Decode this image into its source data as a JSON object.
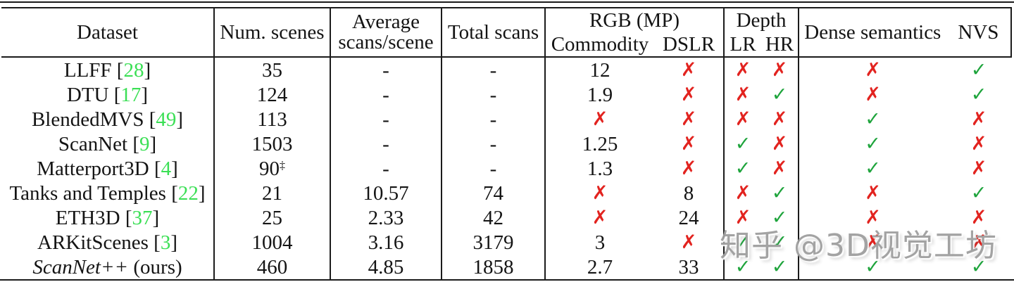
{
  "colors": {
    "check": "#1ea43c",
    "cross": "#e2231f",
    "citation": "#3bdf55"
  },
  "icons": {
    "check": "✓",
    "cross": "✗"
  },
  "watermark": {
    "text": "知乎 @3D视觉工坊"
  },
  "header": {
    "dataset": "Dataset",
    "num_scenes": "Num. scenes",
    "avg_line1": "Average",
    "avg_line2": "scans/scene",
    "total_scans": "Total scans",
    "rgb_group": "RGB (MP)",
    "commodity": "Commodity",
    "dslr": "DSLR",
    "depth_group": "Depth",
    "lr": "LR",
    "hr": "HR",
    "dense_semantics": "Dense semantics",
    "nvs": "NVS"
  },
  "rows": [
    {
      "name": "LLFF",
      "cite": "28",
      "num_scenes": "35",
      "avg": "-",
      "total": "-",
      "commodity": "12",
      "dslr": "cross",
      "lr": "cross",
      "hr": "cross",
      "dense": "cross",
      "nvs": "check"
    },
    {
      "name": "DTU",
      "cite": "17",
      "num_scenes": "124",
      "avg": "-",
      "total": "-",
      "commodity": "1.9",
      "dslr": "cross",
      "lr": "cross",
      "hr": "check",
      "dense": "cross",
      "nvs": "check"
    },
    {
      "name": "BlendedMVS",
      "cite": "49",
      "num_scenes": "113",
      "avg": "-",
      "total": "-",
      "commodity": "cross",
      "dslr": "cross",
      "lr": "cross",
      "hr": "cross",
      "dense": "check",
      "nvs": "cross"
    },
    {
      "name": "ScanNet",
      "cite": "9",
      "num_scenes": "1503",
      "avg": "-",
      "total": "-",
      "commodity": "1.25",
      "dslr": "cross",
      "lr": "check",
      "hr": "cross",
      "dense": "check",
      "nvs": "cross"
    },
    {
      "name": "Matterport3D",
      "cite": "4",
      "num_scenes": "90",
      "num_scenes_sup": "‡",
      "avg": "-",
      "total": "-",
      "commodity": "1.3",
      "dslr": "cross",
      "lr": "check",
      "hr": "cross",
      "dense": "check",
      "nvs": "cross"
    },
    {
      "name": "Tanks and Temples",
      "cite": "22",
      "num_scenes": "21",
      "avg": "10.57",
      "total": "74",
      "commodity": "cross",
      "dslr": "8",
      "lr": "cross",
      "hr": "check",
      "dense": "cross",
      "nvs": "check"
    },
    {
      "name": "ETH3D",
      "cite": "37",
      "num_scenes": "25",
      "avg": "2.33",
      "total": "42",
      "commodity": "cross",
      "dslr": "24",
      "lr": "cross",
      "hr": "check",
      "dense": "cross",
      "nvs": "cross"
    },
    {
      "name": "ARKitScenes",
      "cite": "3",
      "num_scenes": "1004",
      "avg": "3.16",
      "total": "3179",
      "commodity": "3",
      "dslr": "cross",
      "lr": "check",
      "hr": "check",
      "dense": "cross",
      "nvs": "cross"
    },
    {
      "name": "ScanNet++",
      "name_italic": true,
      "suffix": " (ours)",
      "num_scenes": "460",
      "avg": "4.85",
      "total": "1858",
      "commodity": "2.7",
      "dslr": "33",
      "lr": "check",
      "hr": "check",
      "dense": "check",
      "nvs": "check"
    }
  ]
}
